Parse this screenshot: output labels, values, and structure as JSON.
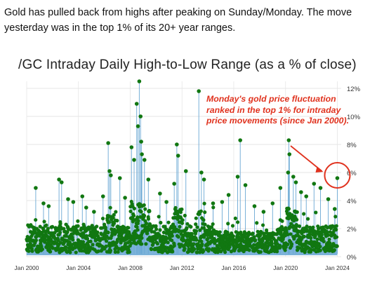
{
  "intro_text": "Gold has pulled back from highs after peaking on Sunday/Monday.  The move yesterday was in the top 1% of its 20+ year ranges.",
  "chart_data": {
    "type": "scatter",
    "title": "/GC Intraday Daily High-to-Low Range (as a % of close)",
    "xlabel": "",
    "ylabel": "",
    "x_ticks": [
      "Jan 2000",
      "Jan 2004",
      "Jan 2008",
      "Jan 2012",
      "Jan 2016",
      "Jan 2020",
      "Jan 2024"
    ],
    "x_range": [
      2000,
      2024.3
    ],
    "y_ticks": [
      "0%",
      "2%",
      "4%",
      "6%",
      "8%",
      "10%",
      "12%"
    ],
    "y_range": [
      0,
      12.5
    ],
    "grid": true,
    "y_axis_side": "right",
    "colors": {
      "points": "#117711",
      "stems": "#6aa8d4",
      "annotation": "#e0321e"
    },
    "baseline_range": [
      0.3,
      2.2
    ],
    "spikes": [
      {
        "x": 2000.7,
        "y": 4.9
      },
      {
        "x": 2001.3,
        "y": 3.8
      },
      {
        "x": 2001.7,
        "y": 3.6
      },
      {
        "x": 2002.5,
        "y": 5.5
      },
      {
        "x": 2002.7,
        "y": 5.3
      },
      {
        "x": 2003.2,
        "y": 4.1
      },
      {
        "x": 2003.6,
        "y": 3.9
      },
      {
        "x": 2004.3,
        "y": 4.3
      },
      {
        "x": 2004.6,
        "y": 3.5
      },
      {
        "x": 2005.2,
        "y": 3.2
      },
      {
        "x": 2005.9,
        "y": 4.3
      },
      {
        "x": 2006.3,
        "y": 8.1
      },
      {
        "x": 2006.4,
        "y": 6.1
      },
      {
        "x": 2006.5,
        "y": 5.8
      },
      {
        "x": 2007.2,
        "y": 5.6
      },
      {
        "x": 2007.6,
        "y": 4.2
      },
      {
        "x": 2008.1,
        "y": 7.8
      },
      {
        "x": 2008.3,
        "y": 6.9
      },
      {
        "x": 2008.5,
        "y": 10.9
      },
      {
        "x": 2008.6,
        "y": 9.3
      },
      {
        "x": 2008.7,
        "y": 12.5
      },
      {
        "x": 2008.8,
        "y": 10.0
      },
      {
        "x": 2008.85,
        "y": 8.2
      },
      {
        "x": 2008.9,
        "y": 7.3
      },
      {
        "x": 2009.1,
        "y": 6.9
      },
      {
        "x": 2009.4,
        "y": 5.5
      },
      {
        "x": 2010.3,
        "y": 4.5
      },
      {
        "x": 2010.8,
        "y": 3.9
      },
      {
        "x": 2011.4,
        "y": 5.2
      },
      {
        "x": 2011.6,
        "y": 8.0
      },
      {
        "x": 2011.7,
        "y": 7.2
      },
      {
        "x": 2012.3,
        "y": 6.1
      },
      {
        "x": 2013.3,
        "y": 11.8
      },
      {
        "x": 2013.5,
        "y": 6.0
      },
      {
        "x": 2013.7,
        "y": 5.5
      },
      {
        "x": 2014.4,
        "y": 3.8
      },
      {
        "x": 2015.1,
        "y": 3.9
      },
      {
        "x": 2015.6,
        "y": 4.4
      },
      {
        "x": 2016.3,
        "y": 5.7
      },
      {
        "x": 2016.5,
        "y": 8.3
      },
      {
        "x": 2016.9,
        "y": 5.1
      },
      {
        "x": 2017.6,
        "y": 3.6
      },
      {
        "x": 2018.3,
        "y": 3.2
      },
      {
        "x": 2019.0,
        "y": 3.8
      },
      {
        "x": 2019.6,
        "y": 4.9
      },
      {
        "x": 2020.2,
        "y": 6.0
      },
      {
        "x": 2020.25,
        "y": 8.3
      },
      {
        "x": 2020.3,
        "y": 7.3
      },
      {
        "x": 2020.6,
        "y": 5.7
      },
      {
        "x": 2020.8,
        "y": 5.3
      },
      {
        "x": 2021.2,
        "y": 4.6
      },
      {
        "x": 2021.6,
        "y": 4.3
      },
      {
        "x": 2022.2,
        "y": 5.2
      },
      {
        "x": 2022.7,
        "y": 4.9
      },
      {
        "x": 2023.3,
        "y": 4.1
      },
      {
        "x": 2023.8,
        "y": 3.4
      },
      {
        "x": 2024.0,
        "y": 5.6
      }
    ],
    "highlighted_point": {
      "x": 2024.0,
      "y": 5.6
    },
    "annotation": "Monday's gold price fluctuation ranked in the top 1% for intraday price movements (since Jan 2000)."
  }
}
